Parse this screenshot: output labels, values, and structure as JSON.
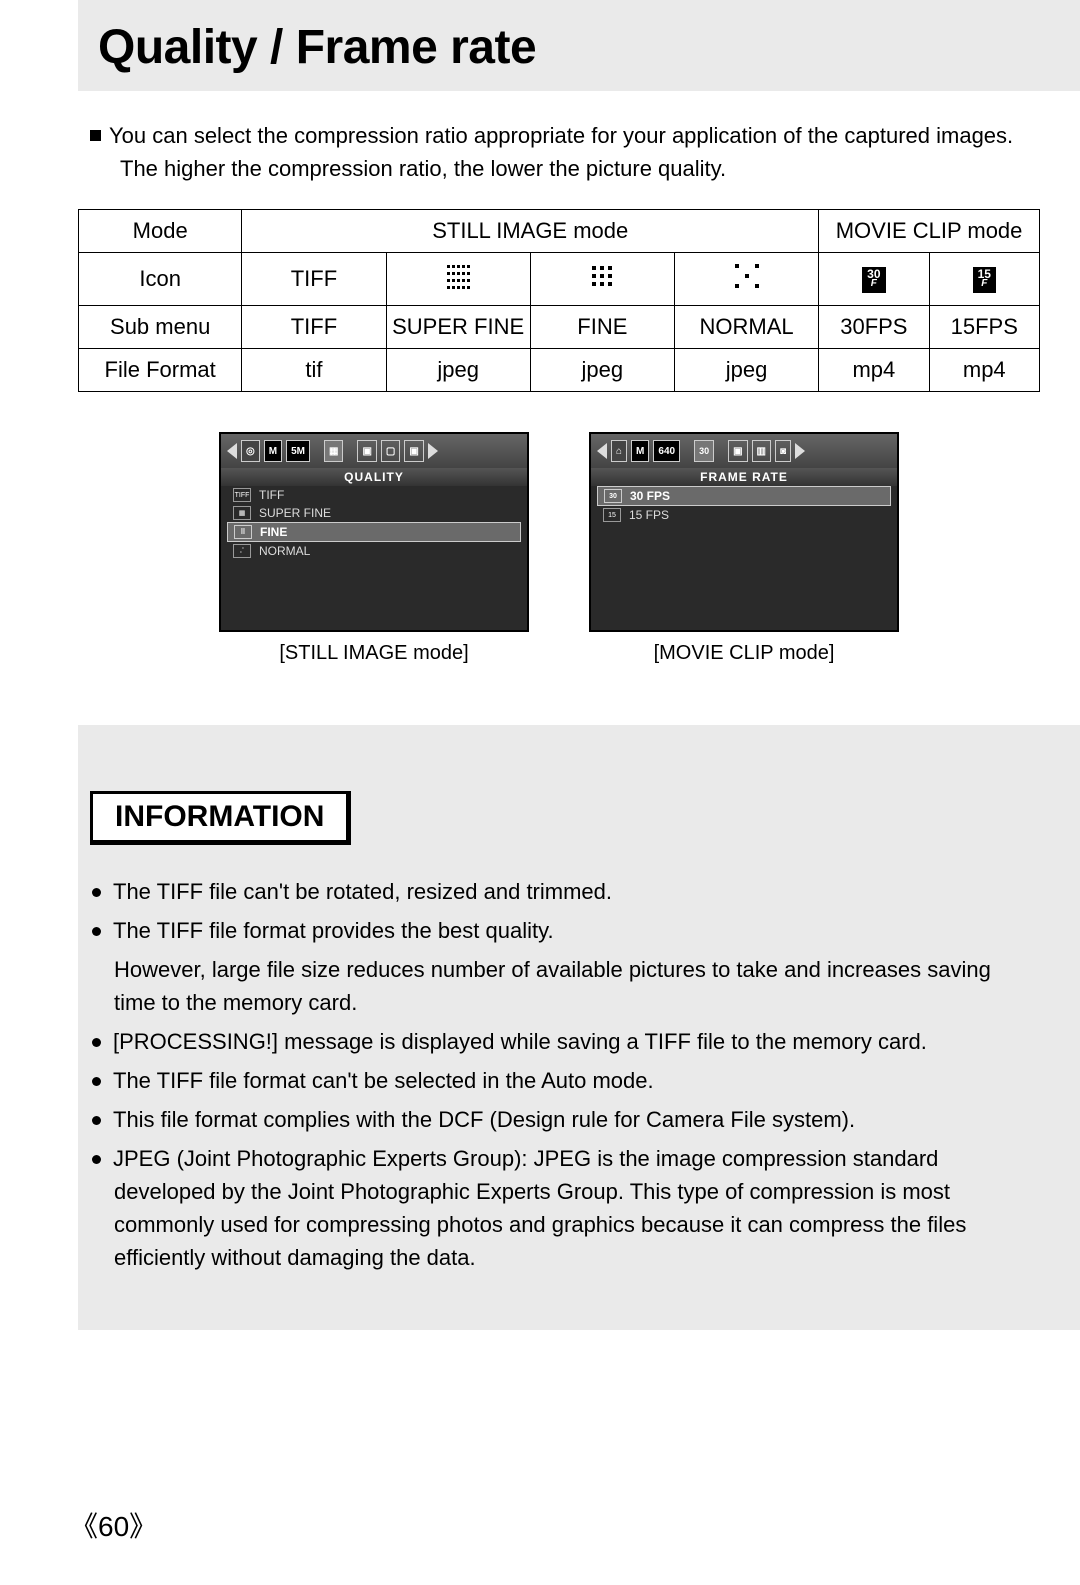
{
  "title": "Quality / Frame rate",
  "intro_line1": "You can select the compression ratio appropriate for your application of the captured images.",
  "intro_line2": "The higher the compression ratio, the lower the picture quality.",
  "table": {
    "row_labels": {
      "mode": "Mode",
      "icon": "Icon",
      "submenu": "Sub menu",
      "format": "File Format"
    },
    "still_header": "STILL IMAGE mode",
    "movie_header": "MOVIE CLIP mode",
    "cols": [
      {
        "icon_type": "text",
        "icon_text": "TIFF",
        "submenu": "TIFF",
        "format": "tif"
      },
      {
        "icon_type": "dots5x4",
        "submenu": "SUPER FINE",
        "format": "jpeg"
      },
      {
        "icon_type": "dots3x3",
        "submenu": "FINE",
        "format": "jpeg"
      },
      {
        "icon_type": "dots_sparse",
        "submenu": "NORMAL",
        "format": "jpeg"
      },
      {
        "icon_type": "fps",
        "icon_text": "30",
        "submenu": "30FPS",
        "format": "mp4"
      },
      {
        "icon_type": "fps",
        "icon_text": "15",
        "submenu": "15FPS",
        "format": "mp4"
      }
    ]
  },
  "screens": {
    "still": {
      "caption": "[STILL IMAGE mode]",
      "menu_title": "QUALITY",
      "top_badge": "5M",
      "items": [
        {
          "label": "TIFF",
          "icon": "TIFF",
          "selected": false
        },
        {
          "label": "SUPER FINE",
          "icon": "grid",
          "selected": false
        },
        {
          "label": "FINE",
          "icon": "grid",
          "selected": true
        },
        {
          "label": "NORMAL",
          "icon": "dots",
          "selected": false
        }
      ]
    },
    "movie": {
      "caption": "[MOVIE CLIP mode]",
      "menu_title": "FRAME RATE",
      "top_badge": "640",
      "top_badge2": "30",
      "items": [
        {
          "label": "30 FPS",
          "icon": "30",
          "selected": true
        },
        {
          "label": "15 FPS",
          "icon": "15",
          "selected": false
        }
      ]
    }
  },
  "info": {
    "heading": "INFORMATION",
    "bullets": [
      {
        "lines": [
          "The TIFF file can't be rotated, resized and trimmed."
        ]
      },
      {
        "lines": [
          "The TIFF file format provides the best quality.",
          "However, large file size reduces number of available pictures to take and increases saving time to the memory card."
        ]
      },
      {
        "lines": [
          "[PROCESSING!] message is displayed while saving a TIFF file to the memory card."
        ]
      },
      {
        "lines": [
          "The TIFF file format can't be selected in the Auto mode."
        ]
      },
      {
        "lines": [
          "This file format complies with the DCF (Design rule for Camera File system)."
        ]
      },
      {
        "lines": [
          "JPEG (Joint Photographic Experts Group): JPEG is the image compression standard developed by the Joint Photographic Experts Group. This type of compression is most commonly used for compressing photos and graphics because it can compress the files efficiently without damaging the data."
        ]
      }
    ]
  },
  "page_number": "《60》"
}
